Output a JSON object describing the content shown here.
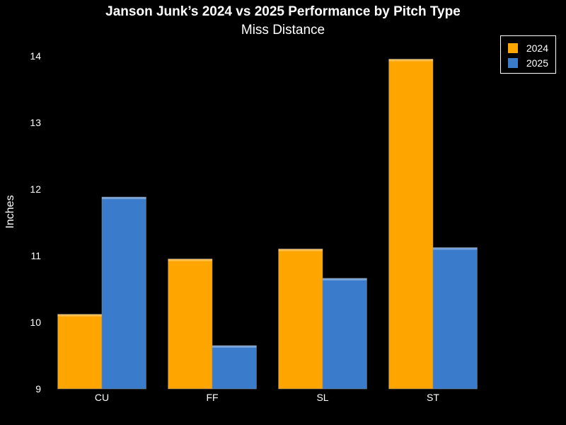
{
  "chart_data": {
    "type": "bar",
    "title": "Janson Junk’s 2024 vs 2025 Performance by Pitch Type",
    "subtitle": "Miss Distance",
    "xlabel": "",
    "ylabel": "Inches",
    "categories": [
      "CU",
      "FF",
      "SL",
      "ST"
    ],
    "series": [
      {
        "name": "2024",
        "color": "#FFA500",
        "values": [
          10.12,
          10.95,
          11.1,
          13.95
        ]
      },
      {
        "name": "2025",
        "color": "#3A7BCB",
        "values": [
          11.88,
          9.65,
          10.66,
          11.12
        ]
      }
    ],
    "ylim": [
      9,
      14.2
    ],
    "yticks": [
      9,
      10,
      11,
      12,
      13,
      14
    ],
    "grid": false,
    "legend_position": "top-right"
  }
}
